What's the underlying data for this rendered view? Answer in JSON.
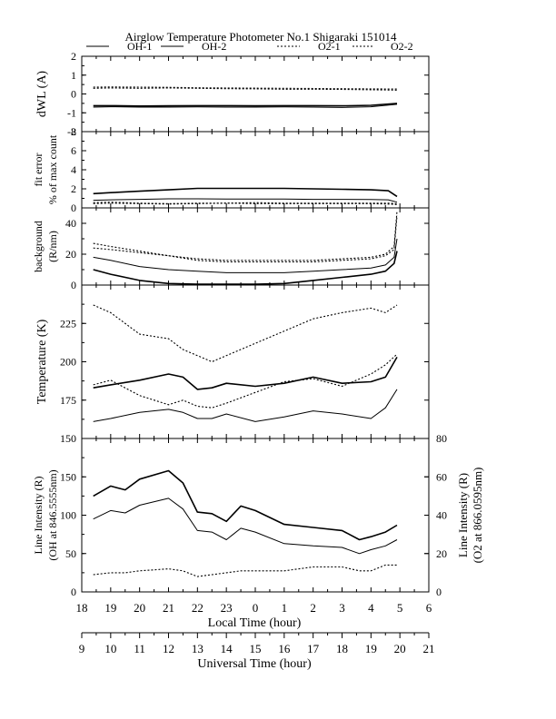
{
  "title": "Airglow Temperature Photometer No.1  Shigaraki   151014",
  "legend": [
    {
      "name": "OH-1",
      "style": "solid"
    },
    {
      "name": "OH-2",
      "style": "solid"
    },
    {
      "name": "O2-1",
      "style": "dotted"
    },
    {
      "name": "O2-2",
      "style": "dotted"
    }
  ],
  "colors": {
    "ink": "#000000",
    "background": "#ffffff"
  },
  "x_axis_local": {
    "label": "Local Time (hour)",
    "range": [
      18,
      30
    ],
    "tick_labels": [
      "18",
      "19",
      "20",
      "21",
      "22",
      "23",
      "0",
      "1",
      "2",
      "3",
      "4",
      "5",
      "6"
    ]
  },
  "x_axis_ut": {
    "label": "Universal Time (hour)",
    "range": [
      9,
      21
    ],
    "tick_labels": [
      "9",
      "10",
      "11",
      "12",
      "13",
      "14",
      "15",
      "16",
      "17",
      "18",
      "19",
      "20",
      "21"
    ]
  },
  "chart_data": [
    {
      "type": "line",
      "ylabel": "dWL (A)",
      "ylim": [
        -2,
        2
      ],
      "yticks": [
        "-2",
        "-1",
        "0",
        "1",
        "2"
      ],
      "x": [
        18.4,
        19,
        20,
        21,
        22,
        23,
        24,
        25,
        26,
        27,
        28,
        28.9
      ],
      "series": [
        {
          "name": "OH-1",
          "style": "solid",
          "values": [
            -0.62,
            -0.62,
            -0.64,
            -0.63,
            -0.62,
            -0.62,
            -0.63,
            -0.62,
            -0.62,
            -0.63,
            -0.6,
            -0.5
          ]
        },
        {
          "name": "OH-2",
          "style": "solid",
          "values": [
            -0.7,
            -0.68,
            -0.7,
            -0.7,
            -0.69,
            -0.7,
            -0.7,
            -0.69,
            -0.7,
            -0.72,
            -0.68,
            -0.55
          ]
        },
        {
          "name": "O2-1",
          "style": "dotted",
          "values": [
            0.3,
            0.32,
            0.3,
            0.32,
            0.3,
            0.28,
            0.27,
            0.25,
            0.25,
            0.24,
            0.22,
            0.2
          ]
        },
        {
          "name": "O2-2",
          "style": "dotted",
          "values": [
            0.36,
            0.37,
            0.36,
            0.35,
            0.33,
            0.32,
            0.31,
            0.3,
            0.29,
            0.28,
            0.27,
            0.26
          ]
        }
      ]
    },
    {
      "type": "line",
      "ylabel": "fit error\n% of max count",
      "ylim": [
        0,
        8
      ],
      "yticks": [
        "0",
        "2",
        "4",
        "6",
        "8"
      ],
      "x": [
        18.4,
        19,
        20,
        21,
        22,
        23,
        24,
        25,
        26,
        27,
        28,
        28.6,
        28.9
      ],
      "series": [
        {
          "name": "OH-1",
          "style": "solid",
          "values": [
            1.5,
            1.6,
            1.75,
            1.9,
            2.05,
            2.05,
            2.05,
            2.05,
            2.0,
            1.95,
            1.9,
            1.8,
            1.2
          ]
        },
        {
          "name": "OH-2",
          "style": "solid",
          "values": [
            0.8,
            0.85,
            0.9,
            0.95,
            0.95,
            0.92,
            0.92,
            0.92,
            0.9,
            0.9,
            0.88,
            0.85,
            0.6
          ]
        },
        {
          "name": "O2-1",
          "style": "dotted",
          "values": [
            0.55,
            0.6,
            0.5,
            0.45,
            0.5,
            0.5,
            0.55,
            0.5,
            0.5,
            0.5,
            0.5,
            0.5,
            0.45
          ]
        },
        {
          "name": "O2-2",
          "style": "dotted",
          "values": [
            0.45,
            0.5,
            0.45,
            0.4,
            0.45,
            0.5,
            0.45,
            0.45,
            0.45,
            0.45,
            0.45,
            0.4,
            0.35
          ]
        }
      ]
    },
    {
      "type": "line",
      "ylabel": "background\n(R/nm)",
      "ylim": [
        0,
        50
      ],
      "yticks": [
        "0",
        "20",
        "40"
      ],
      "x": [
        18.4,
        19,
        20,
        21,
        22,
        23,
        24,
        25,
        26,
        27,
        28,
        28.5,
        28.8,
        28.9
      ],
      "series": [
        {
          "name": "OH-1",
          "style": "solid",
          "values": [
            10,
            7,
            3,
            1,
            0.5,
            0.5,
            0.5,
            1,
            3,
            5,
            7,
            9,
            14,
            22
          ]
        },
        {
          "name": "OH-2",
          "style": "solid",
          "values": [
            18,
            16,
            12,
            10,
            9,
            8,
            8,
            8,
            9,
            10,
            11,
            13,
            18,
            30
          ]
        },
        {
          "name": "O2-1",
          "style": "dotted",
          "values": [
            27,
            25,
            22,
            19,
            17,
            16,
            16,
            16,
            16,
            17,
            18,
            20,
            25,
            48
          ]
        },
        {
          "name": "O2-2",
          "style": "dotted",
          "values": [
            24,
            23,
            21,
            19,
            16,
            15,
            15,
            15,
            15,
            16,
            17,
            19,
            23,
            45
          ]
        }
      ]
    },
    {
      "type": "line",
      "ylabel": "Temperature (K)",
      "ylim": [
        150,
        250
      ],
      "yticks": [
        "150",
        "175",
        "200",
        "225"
      ],
      "x": [
        18.4,
        19,
        20,
        21,
        21.5,
        22,
        22.5,
        23,
        24,
        25,
        26,
        27,
        28,
        28.5,
        28.9
      ],
      "series": [
        {
          "name": "OH-1",
          "style": "solid",
          "values": [
            183,
            185,
            188,
            192,
            190,
            182,
            183,
            186,
            184,
            186,
            190,
            186,
            187,
            190,
            203
          ]
        },
        {
          "name": "OH-2",
          "style": "solid",
          "values": [
            161,
            163,
            167,
            169,
            167,
            163,
            163,
            166,
            161,
            164,
            168,
            166,
            163,
            170,
            182
          ]
        },
        {
          "name": "O2-1",
          "style": "dotted",
          "values": [
            237,
            232,
            218,
            215,
            208,
            204,
            200,
            204,
            212,
            220,
            228,
            232,
            235,
            232,
            237
          ]
        },
        {
          "name": "O2-2",
          "style": "dotted",
          "values": [
            185,
            188,
            178,
            172,
            175,
            171,
            170,
            173,
            180,
            187,
            189,
            184,
            192,
            198,
            205
          ]
        }
      ]
    },
    {
      "type": "line",
      "ylabel": "Line Intensity (R)\n(OH at 846.5555nm)",
      "ylabel_right": "Line Intensity (R)\n(O2 at 866.0595nm)",
      "ylim": [
        0,
        200
      ],
      "ylim_right": [
        0,
        80
      ],
      "yticks": [
        "0",
        "50",
        "100",
        "150"
      ],
      "yticks_right": [
        "0",
        "20",
        "40",
        "60",
        "80"
      ],
      "x": [
        18.4,
        19,
        19.5,
        20,
        21,
        21.5,
        22,
        22.5,
        23,
        23.5,
        24,
        25,
        26,
        27,
        27.6,
        28,
        28.5,
        28.9
      ],
      "series": [
        {
          "name": "OH-1",
          "style": "solid",
          "values": [
            125,
            138,
            133,
            147,
            158,
            142,
            104,
            102,
            92,
            112,
            106,
            88,
            84,
            80,
            68,
            72,
            78,
            87
          ]
        },
        {
          "name": "OH-2",
          "style": "solid",
          "values": [
            95,
            106,
            103,
            113,
            122,
            108,
            80,
            78,
            68,
            83,
            78,
            63,
            60,
            58,
            50,
            55,
            60,
            68
          ]
        },
        {
          "name": "O2",
          "style": "dotted",
          "axis": "right",
          "values": [
            9,
            10,
            10,
            11,
            12,
            11,
            8,
            9,
            10,
            11,
            11,
            11,
            13,
            13,
            11,
            11,
            14,
            14
          ]
        }
      ]
    }
  ]
}
